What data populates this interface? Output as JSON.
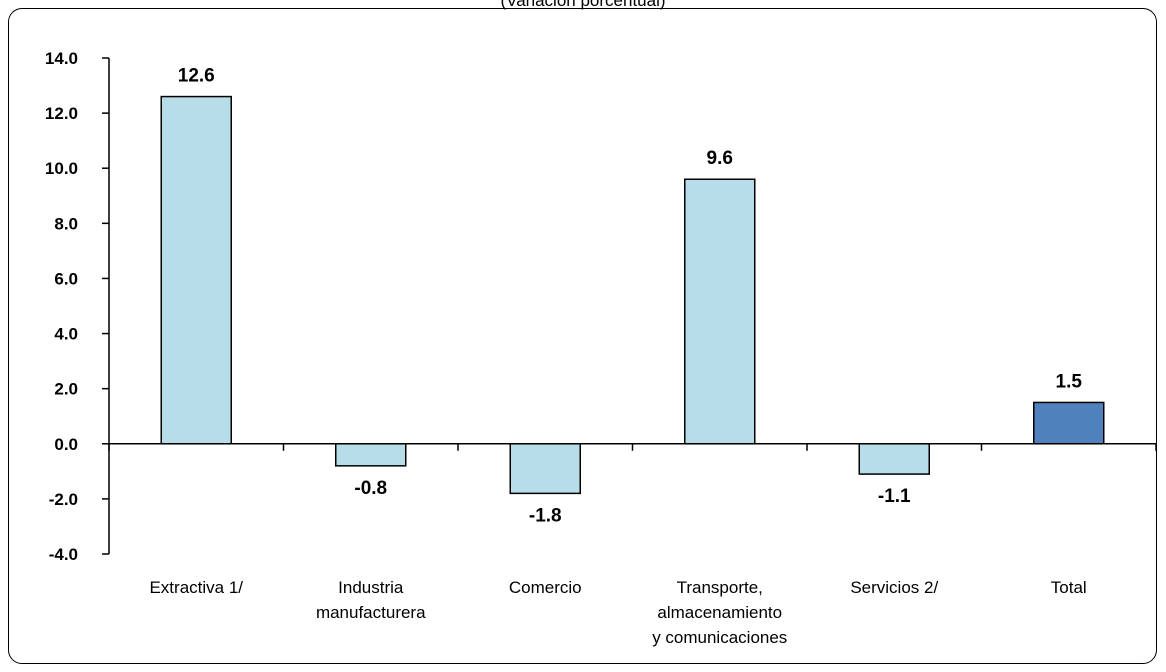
{
  "chart_data": {
    "type": "bar",
    "subtitle": "(Variación porcentual)",
    "categories": [
      [
        "Extractiva 1/"
      ],
      [
        "Industria",
        "manufacturera"
      ],
      [
        "Comercio"
      ],
      [
        "Transporte,",
        "almacenamiento",
        "y comunicaciones"
      ],
      [
        "Servicios 2/"
      ],
      [
        "Total"
      ]
    ],
    "values": [
      12.6,
      -0.8,
      -1.8,
      9.6,
      -1.1,
      1.5
    ],
    "value_labels": [
      "12.6",
      "-0.8",
      "-1.8",
      "9.6",
      "-1.1",
      "1.5"
    ],
    "bar_colors": [
      "#b7dee8",
      "#b7dee8",
      "#b7dee8",
      "#b7dee8",
      "#b7dee8",
      "#4f81bd"
    ],
    "ylim": [
      -4,
      14
    ],
    "yticks": [
      14,
      12,
      10,
      8,
      6,
      4,
      2,
      0,
      -2,
      -4
    ],
    "ytick_labels": [
      "14.0",
      "12.0",
      "10.0",
      "8.0",
      "6.0",
      "4.0",
      "2.0",
      "0.0",
      "-2.0",
      "-4.0"
    ],
    "xlabel": "",
    "ylabel": "",
    "grid": false,
    "legend": "none"
  }
}
